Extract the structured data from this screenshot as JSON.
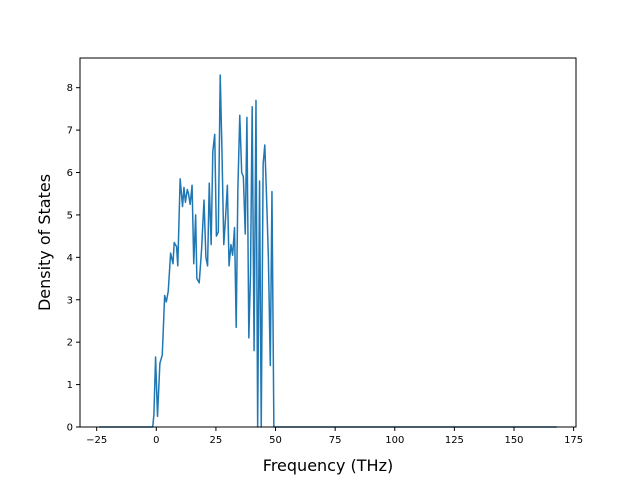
{
  "chart_data": {
    "type": "line",
    "title": "",
    "xlabel": "Frequency (THz)",
    "ylabel": "Density of States",
    "xlim": [
      -32,
      176
    ],
    "ylim": [
      0,
      8.7
    ],
    "x_ticks": [
      -25,
      0,
      25,
      50,
      75,
      100,
      125,
      150,
      175
    ],
    "y_ticks": [
      0,
      1,
      2,
      3,
      4,
      5,
      6,
      7,
      8
    ],
    "grid": false,
    "legend": "none",
    "colors": {
      "line": "#1f77b4",
      "axes": "#000000",
      "background": "#ffffff"
    },
    "series": [
      {
        "x": [
          -24,
          -1.5,
          -1,
          -0.3,
          0.5,
          1.5,
          2.5,
          3.5,
          4.2,
          5,
          6,
          7,
          7.5,
          8.5,
          9,
          10,
          11,
          11.6,
          12.2,
          13,
          13.5,
          14.2,
          15,
          15.7,
          16.5,
          17,
          18,
          19,
          20,
          20.8,
          21.5,
          22.2,
          23,
          23.7,
          24.5,
          25.2,
          26,
          26.8,
          27.5,
          28.3,
          29,
          29.8,
          30.5,
          31.3,
          32,
          32.8,
          33.5,
          34.2,
          35,
          35.8,
          36.5,
          37.3,
          38,
          38.8,
          39.5,
          40.2,
          41,
          41.8,
          42.5,
          43.3,
          44,
          44.8,
          45.5,
          46.3,
          47,
          47.8,
          48.5,
          49.3,
          50,
          50.8,
          51.5,
          52.3,
          53,
          53.8,
          54.5,
          55.3,
          56,
          56.8,
          57.5,
          58.2,
          59,
          60,
          168
        ],
        "y": [
          0,
          0,
          0.3,
          1.65,
          0.25,
          1.5,
          1.7,
          3.1,
          2.95,
          3.2,
          4.1,
          3.85,
          4.35,
          4.25,
          3.8,
          5.85,
          5.2,
          5.65,
          5.3,
          5.6,
          5.5,
          5.25,
          5.7,
          3.85,
          5.0,
          3.5,
          3.4,
          4.2,
          5.35,
          4.0,
          3.8,
          5.75,
          4.3,
          6.5,
          6.9,
          4.5,
          4.6,
          8.3,
          6.6,
          4.3,
          4.9,
          5.7,
          3.8,
          4.3,
          4.05,
          4.7,
          2.35,
          5.6,
          7.35,
          6.0,
          5.9,
          4.55,
          7.3,
          2.1,
          3.6,
          7.55,
          1.8,
          7.7,
          0,
          5.8,
          0,
          6.2,
          6.65,
          5.3,
          4.0,
          1.45,
          5.55,
          0,
          0,
          0,
          0,
          0,
          0,
          0,
          0,
          0,
          0,
          0,
          0,
          0,
          0,
          0,
          0
        ]
      }
    ]
  }
}
